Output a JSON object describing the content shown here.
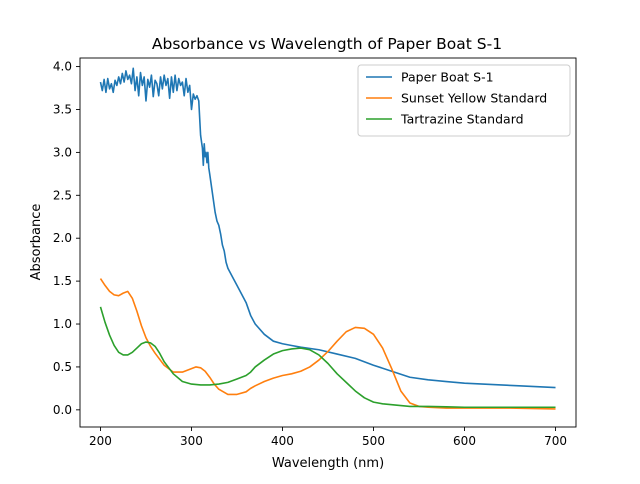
{
  "chart_data": {
    "type": "line",
    "title": "Absorbance vs Wavelength of Paper Boat S-1",
    "xlabel": "Wavelength (nm)",
    "ylabel": "Absorbance",
    "xlim": [
      177.5,
      722.5
    ],
    "ylim": [
      -0.2,
      4.1
    ],
    "xticks": [
      200,
      300,
      400,
      500,
      600,
      700
    ],
    "xtick_labels": [
      "200",
      "300",
      "400",
      "500",
      "600",
      "700"
    ],
    "yticks": [
      0.0,
      0.5,
      1.0,
      1.5,
      2.0,
      2.5,
      3.0,
      3.5,
      4.0
    ],
    "ytick_labels": [
      "0.0",
      "0.5",
      "1.0",
      "1.5",
      "2.0",
      "2.5",
      "3.0",
      "3.5",
      "4.0"
    ],
    "grid": false,
    "legend_position": "top-right",
    "series": [
      {
        "name": "Paper Boat S-1",
        "color": "#1f77b4",
        "x": [
          200,
          202,
          204,
          206,
          208,
          210,
          212,
          214,
          216,
          218,
          220,
          222,
          224,
          226,
          228,
          230,
          232,
          234,
          236,
          238,
          240,
          242,
          244,
          246,
          248,
          250,
          252,
          254,
          256,
          258,
          260,
          262,
          264,
          266,
          268,
          270,
          272,
          274,
          276,
          278,
          280,
          282,
          284,
          286,
          288,
          290,
          292,
          294,
          296,
          298,
          300,
          302,
          304,
          306,
          308,
          310,
          312,
          313,
          314,
          315,
          316,
          317,
          318,
          319,
          320,
          322,
          324,
          326,
          328,
          330,
          332,
          334,
          336,
          338,
          340,
          345,
          350,
          355,
          360,
          365,
          370,
          380,
          390,
          400,
          410,
          420,
          440,
          460,
          480,
          500,
          520,
          540,
          560,
          580,
          600,
          620,
          640,
          660,
          680,
          700
        ],
        "y": [
          3.82,
          3.72,
          3.85,
          3.7,
          3.86,
          3.74,
          3.8,
          3.7,
          3.84,
          3.78,
          3.88,
          3.8,
          3.92,
          3.82,
          3.95,
          3.85,
          3.9,
          3.8,
          3.98,
          3.72,
          3.88,
          3.66,
          3.93,
          3.78,
          3.88,
          3.6,
          3.85,
          3.76,
          3.9,
          3.65,
          3.84,
          3.8,
          3.66,
          3.88,
          3.74,
          3.9,
          3.78,
          3.86,
          3.63,
          3.88,
          3.7,
          3.9,
          3.72,
          3.86,
          3.78,
          3.82,
          3.66,
          3.86,
          3.7,
          3.78,
          3.5,
          3.68,
          3.62,
          3.66,
          3.6,
          3.2,
          3.05,
          2.85,
          3.1,
          2.95,
          3.0,
          2.88,
          3.0,
          2.82,
          2.75,
          2.6,
          2.45,
          2.3,
          2.2,
          2.15,
          2.05,
          1.92,
          1.85,
          1.72,
          1.65,
          1.55,
          1.45,
          1.35,
          1.25,
          1.1,
          1.0,
          0.88,
          0.8,
          0.77,
          0.75,
          0.73,
          0.7,
          0.65,
          0.6,
          0.52,
          0.45,
          0.38,
          0.35,
          0.33,
          0.31,
          0.3,
          0.29,
          0.28,
          0.27,
          0.26
        ]
      },
      {
        "name": "Sunset Yellow Standard",
        "color": "#ff7f0e",
        "x": [
          200,
          205,
          210,
          215,
          220,
          225,
          230,
          235,
          240,
          245,
          250,
          255,
          260,
          270,
          280,
          290,
          300,
          305,
          310,
          315,
          320,
          325,
          330,
          340,
          350,
          360,
          365,
          370,
          380,
          390,
          400,
          410,
          420,
          430,
          440,
          450,
          460,
          470,
          480,
          490,
          500,
          510,
          520,
          530,
          540,
          550,
          560,
          580,
          600,
          650,
          700
        ],
        "y": [
          1.53,
          1.45,
          1.38,
          1.34,
          1.33,
          1.36,
          1.38,
          1.3,
          1.15,
          0.98,
          0.84,
          0.74,
          0.66,
          0.52,
          0.44,
          0.44,
          0.48,
          0.5,
          0.49,
          0.45,
          0.38,
          0.3,
          0.24,
          0.18,
          0.18,
          0.21,
          0.25,
          0.28,
          0.33,
          0.37,
          0.4,
          0.42,
          0.45,
          0.5,
          0.58,
          0.68,
          0.8,
          0.91,
          0.96,
          0.95,
          0.88,
          0.72,
          0.48,
          0.22,
          0.08,
          0.04,
          0.03,
          0.02,
          0.02,
          0.02,
          0.01
        ]
      },
      {
        "name": "Tartrazine Standard",
        "color": "#2ca02c",
        "x": [
          200,
          205,
          210,
          215,
          220,
          225,
          230,
          235,
          240,
          245,
          250,
          255,
          260,
          265,
          270,
          280,
          290,
          300,
          310,
          320,
          330,
          340,
          350,
          360,
          365,
          370,
          380,
          390,
          400,
          410,
          420,
          430,
          440,
          450,
          460,
          470,
          480,
          490,
          500,
          510,
          520,
          530,
          540,
          560,
          580,
          600,
          650,
          700
        ],
        "y": [
          1.2,
          1.02,
          0.87,
          0.75,
          0.67,
          0.64,
          0.64,
          0.67,
          0.72,
          0.77,
          0.79,
          0.78,
          0.74,
          0.66,
          0.56,
          0.42,
          0.33,
          0.3,
          0.29,
          0.29,
          0.3,
          0.32,
          0.36,
          0.4,
          0.44,
          0.5,
          0.58,
          0.65,
          0.69,
          0.71,
          0.72,
          0.7,
          0.64,
          0.54,
          0.42,
          0.32,
          0.22,
          0.14,
          0.09,
          0.07,
          0.06,
          0.05,
          0.04,
          0.04,
          0.035,
          0.03,
          0.03,
          0.03
        ]
      }
    ]
  }
}
